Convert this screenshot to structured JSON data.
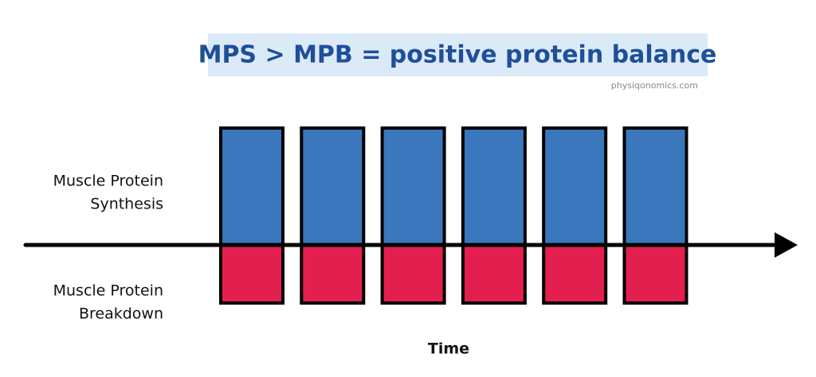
{
  "header": {
    "title": "MPS > MPB = positive protein balance",
    "source": "physiqonomics.com"
  },
  "rows": [
    {
      "label": [
        "Muscle Protein",
        "Synthesis"
      ]
    },
    {
      "label": [
        "Muscle Protein",
        "Breakdown"
      ]
    }
  ],
  "axis": {
    "label": "Time"
  }
}
